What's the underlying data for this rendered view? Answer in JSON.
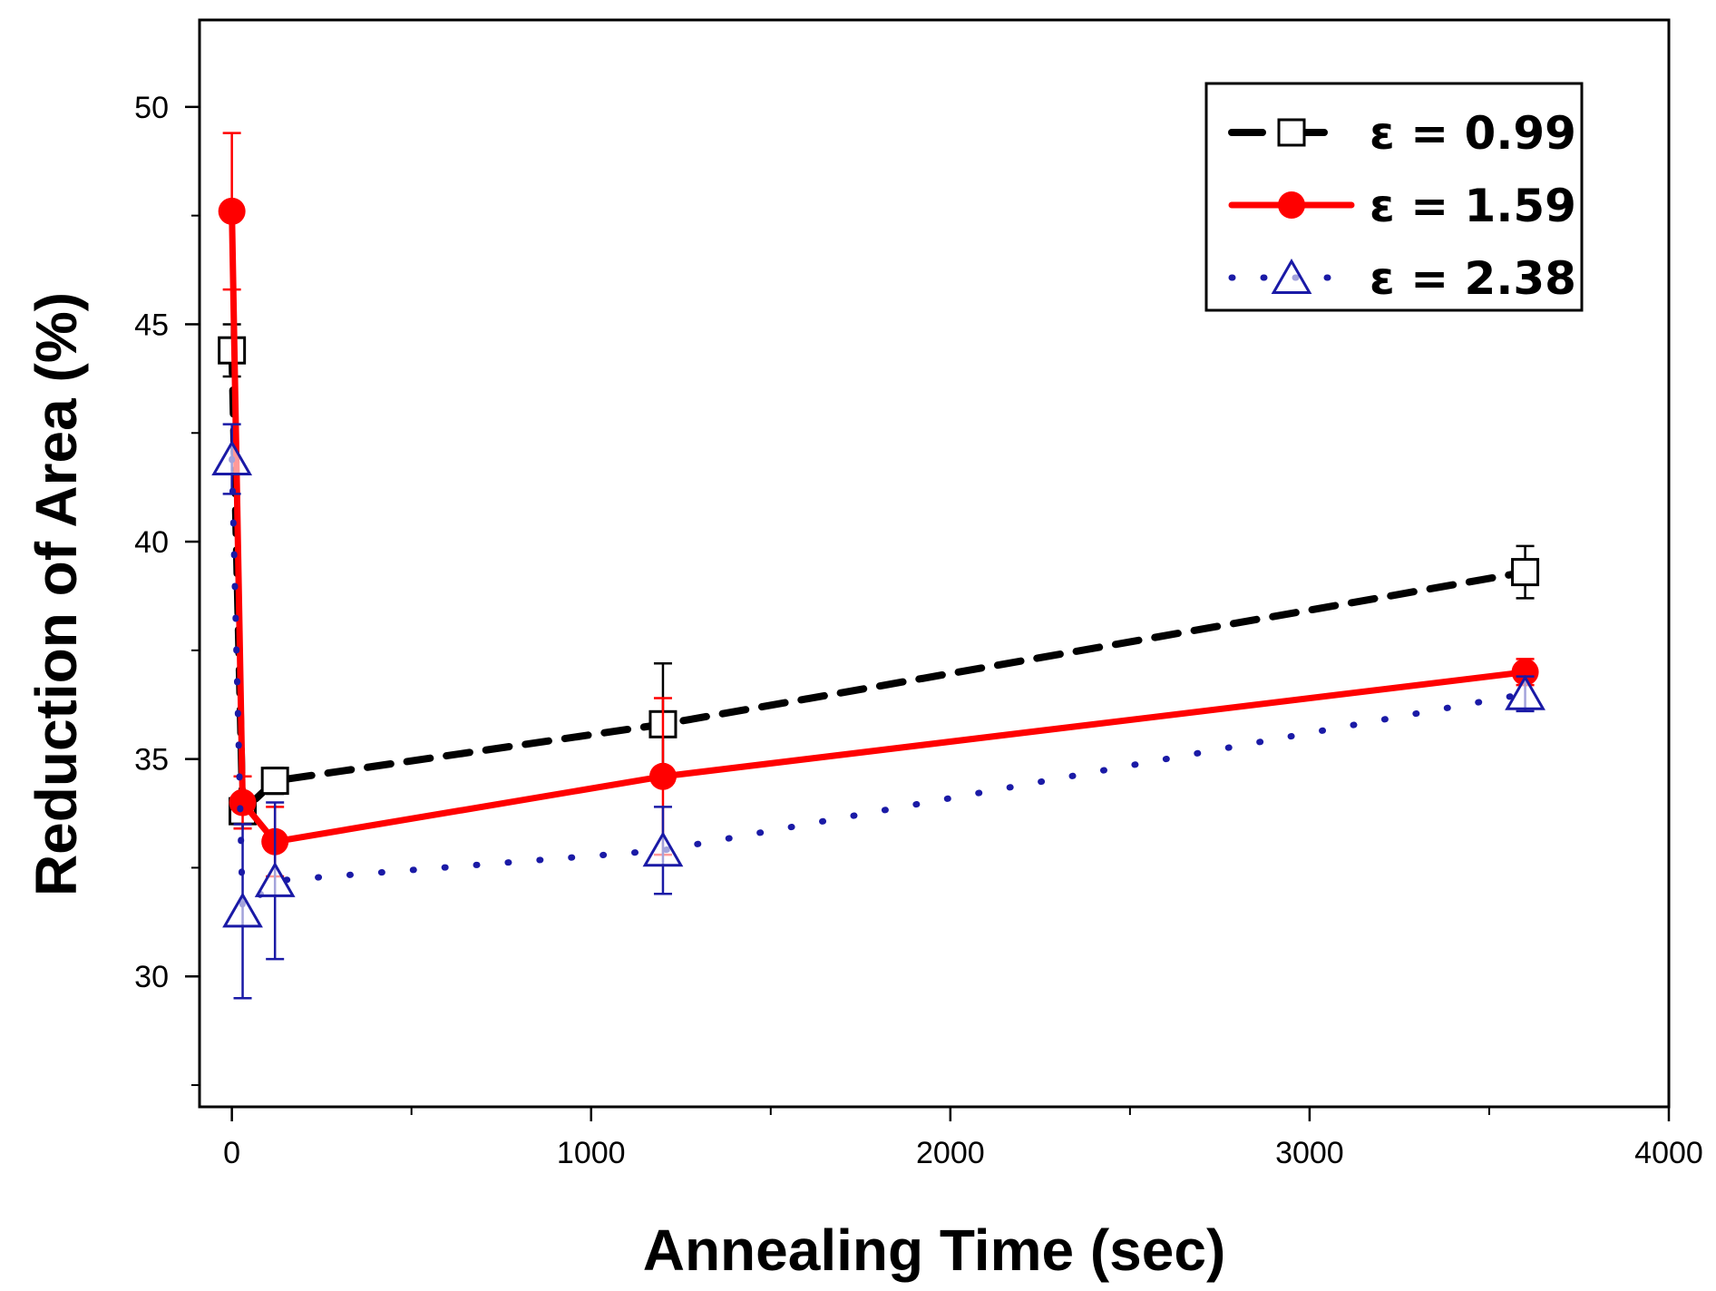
{
  "chart_data": {
    "type": "line",
    "title": "",
    "xlabel": "Annealing Time (sec)",
    "ylabel": "Reduction of  Area (%)",
    "xlim": [
      -90,
      4000
    ],
    "ylim": [
      27.0,
      52.0
    ],
    "x_ticks": [
      0,
      1000,
      2000,
      3000,
      4000
    ],
    "x_tick_labels": [
      "0",
      "1000",
      "2000",
      "3000",
      "4000"
    ],
    "x_minor_ticks": [
      500,
      1500,
      2500,
      3500
    ],
    "y_ticks": [
      30,
      35,
      40,
      45,
      50
    ],
    "y_tick_labels": [
      "30",
      "35",
      "40",
      "45",
      "50"
    ],
    "y_minor_ticks": [
      27.5,
      32.5,
      37.5,
      42.5,
      47.5
    ],
    "grid": false,
    "legend_position": "top-right",
    "series": [
      {
        "name": "ε = 0.99",
        "color": "#000000",
        "line_style": "dashed",
        "marker": "open-square",
        "points": [
          {
            "x": 0,
            "y": 44.4,
            "err": 0.6
          },
          {
            "x": 30,
            "y": 33.8,
            "err": 0.4
          },
          {
            "x": 120,
            "y": 34.5,
            "err": 0.3
          },
          {
            "x": 1200,
            "y": 35.8,
            "err": 1.4
          },
          {
            "x": 3600,
            "y": 39.3,
            "err": 0.6
          }
        ]
      },
      {
        "name": "ε = 1.59",
        "color": "#ff0000",
        "line_style": "solid",
        "marker": "filled-circle",
        "points": [
          {
            "x": 0,
            "y": 47.6,
            "err": 1.8
          },
          {
            "x": 30,
            "y": 34.0,
            "err": 0.6
          },
          {
            "x": 120,
            "y": 33.1,
            "err": 0.8
          },
          {
            "x": 1200,
            "y": 34.6,
            "err": 1.8
          },
          {
            "x": 3600,
            "y": 37.0,
            "err": 0.3
          }
        ]
      },
      {
        "name": "ε = 2.38",
        "color": "#1a1aa6",
        "line_style": "dotted",
        "marker": "open-triangle",
        "points": [
          {
            "x": 0,
            "y": 41.9,
            "err": 0.8
          },
          {
            "x": 30,
            "y": 31.5,
            "err": 2.0
          },
          {
            "x": 120,
            "y": 32.2,
            "err": 1.8
          },
          {
            "x": 1200,
            "y": 32.9,
            "err": 1.0
          },
          {
            "x": 3600,
            "y": 36.5,
            "err": 0.4
          }
        ]
      }
    ]
  }
}
